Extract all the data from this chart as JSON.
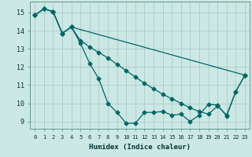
{
  "xlabel": "Humidex (Indice chaleur)",
  "bg_color": "#cce8e4",
  "grid_color": "#aacccc",
  "line_color": "#006666",
  "xlim": [
    -0.5,
    23.5
  ],
  "ylim": [
    8.6,
    15.6
  ],
  "xticks": [
    0,
    1,
    2,
    3,
    4,
    5,
    6,
    7,
    8,
    9,
    10,
    11,
    12,
    13,
    14,
    15,
    16,
    17,
    18,
    19,
    20,
    21,
    22,
    23
  ],
  "yticks": [
    9,
    10,
    11,
    12,
    13,
    14,
    15
  ],
  "series1_x": [
    0,
    1,
    2,
    3,
    4,
    5,
    6,
    7,
    8,
    9,
    10,
    11,
    12,
    13,
    14,
    15,
    16,
    17,
    18,
    19,
    20,
    21,
    22,
    23
  ],
  "series1_y": [
    14.85,
    15.2,
    15.05,
    13.85,
    14.2,
    13.3,
    12.2,
    11.35,
    10.0,
    9.5,
    8.9,
    8.9,
    9.5,
    9.5,
    9.55,
    9.35,
    9.4,
    9.0,
    9.35,
    9.95,
    9.9,
    9.3,
    10.65,
    11.55
  ],
  "series2_x": [
    0,
    1,
    2,
    3,
    4,
    23
  ],
  "series2_y": [
    14.85,
    15.2,
    15.05,
    13.85,
    14.2,
    11.55
  ],
  "series3_x": [
    0,
    1,
    2,
    3,
    4,
    5,
    6,
    7,
    8,
    9,
    10,
    11,
    12,
    13,
    14,
    15,
    16,
    17,
    18,
    19,
    20,
    21,
    22,
    23
  ],
  "series3_y": [
    14.85,
    15.2,
    15.05,
    13.85,
    14.2,
    13.45,
    13.1,
    12.8,
    12.5,
    12.15,
    11.8,
    11.45,
    11.1,
    10.8,
    10.5,
    10.25,
    10.0,
    9.75,
    9.55,
    9.4,
    9.85,
    9.35,
    10.65,
    11.55
  ]
}
